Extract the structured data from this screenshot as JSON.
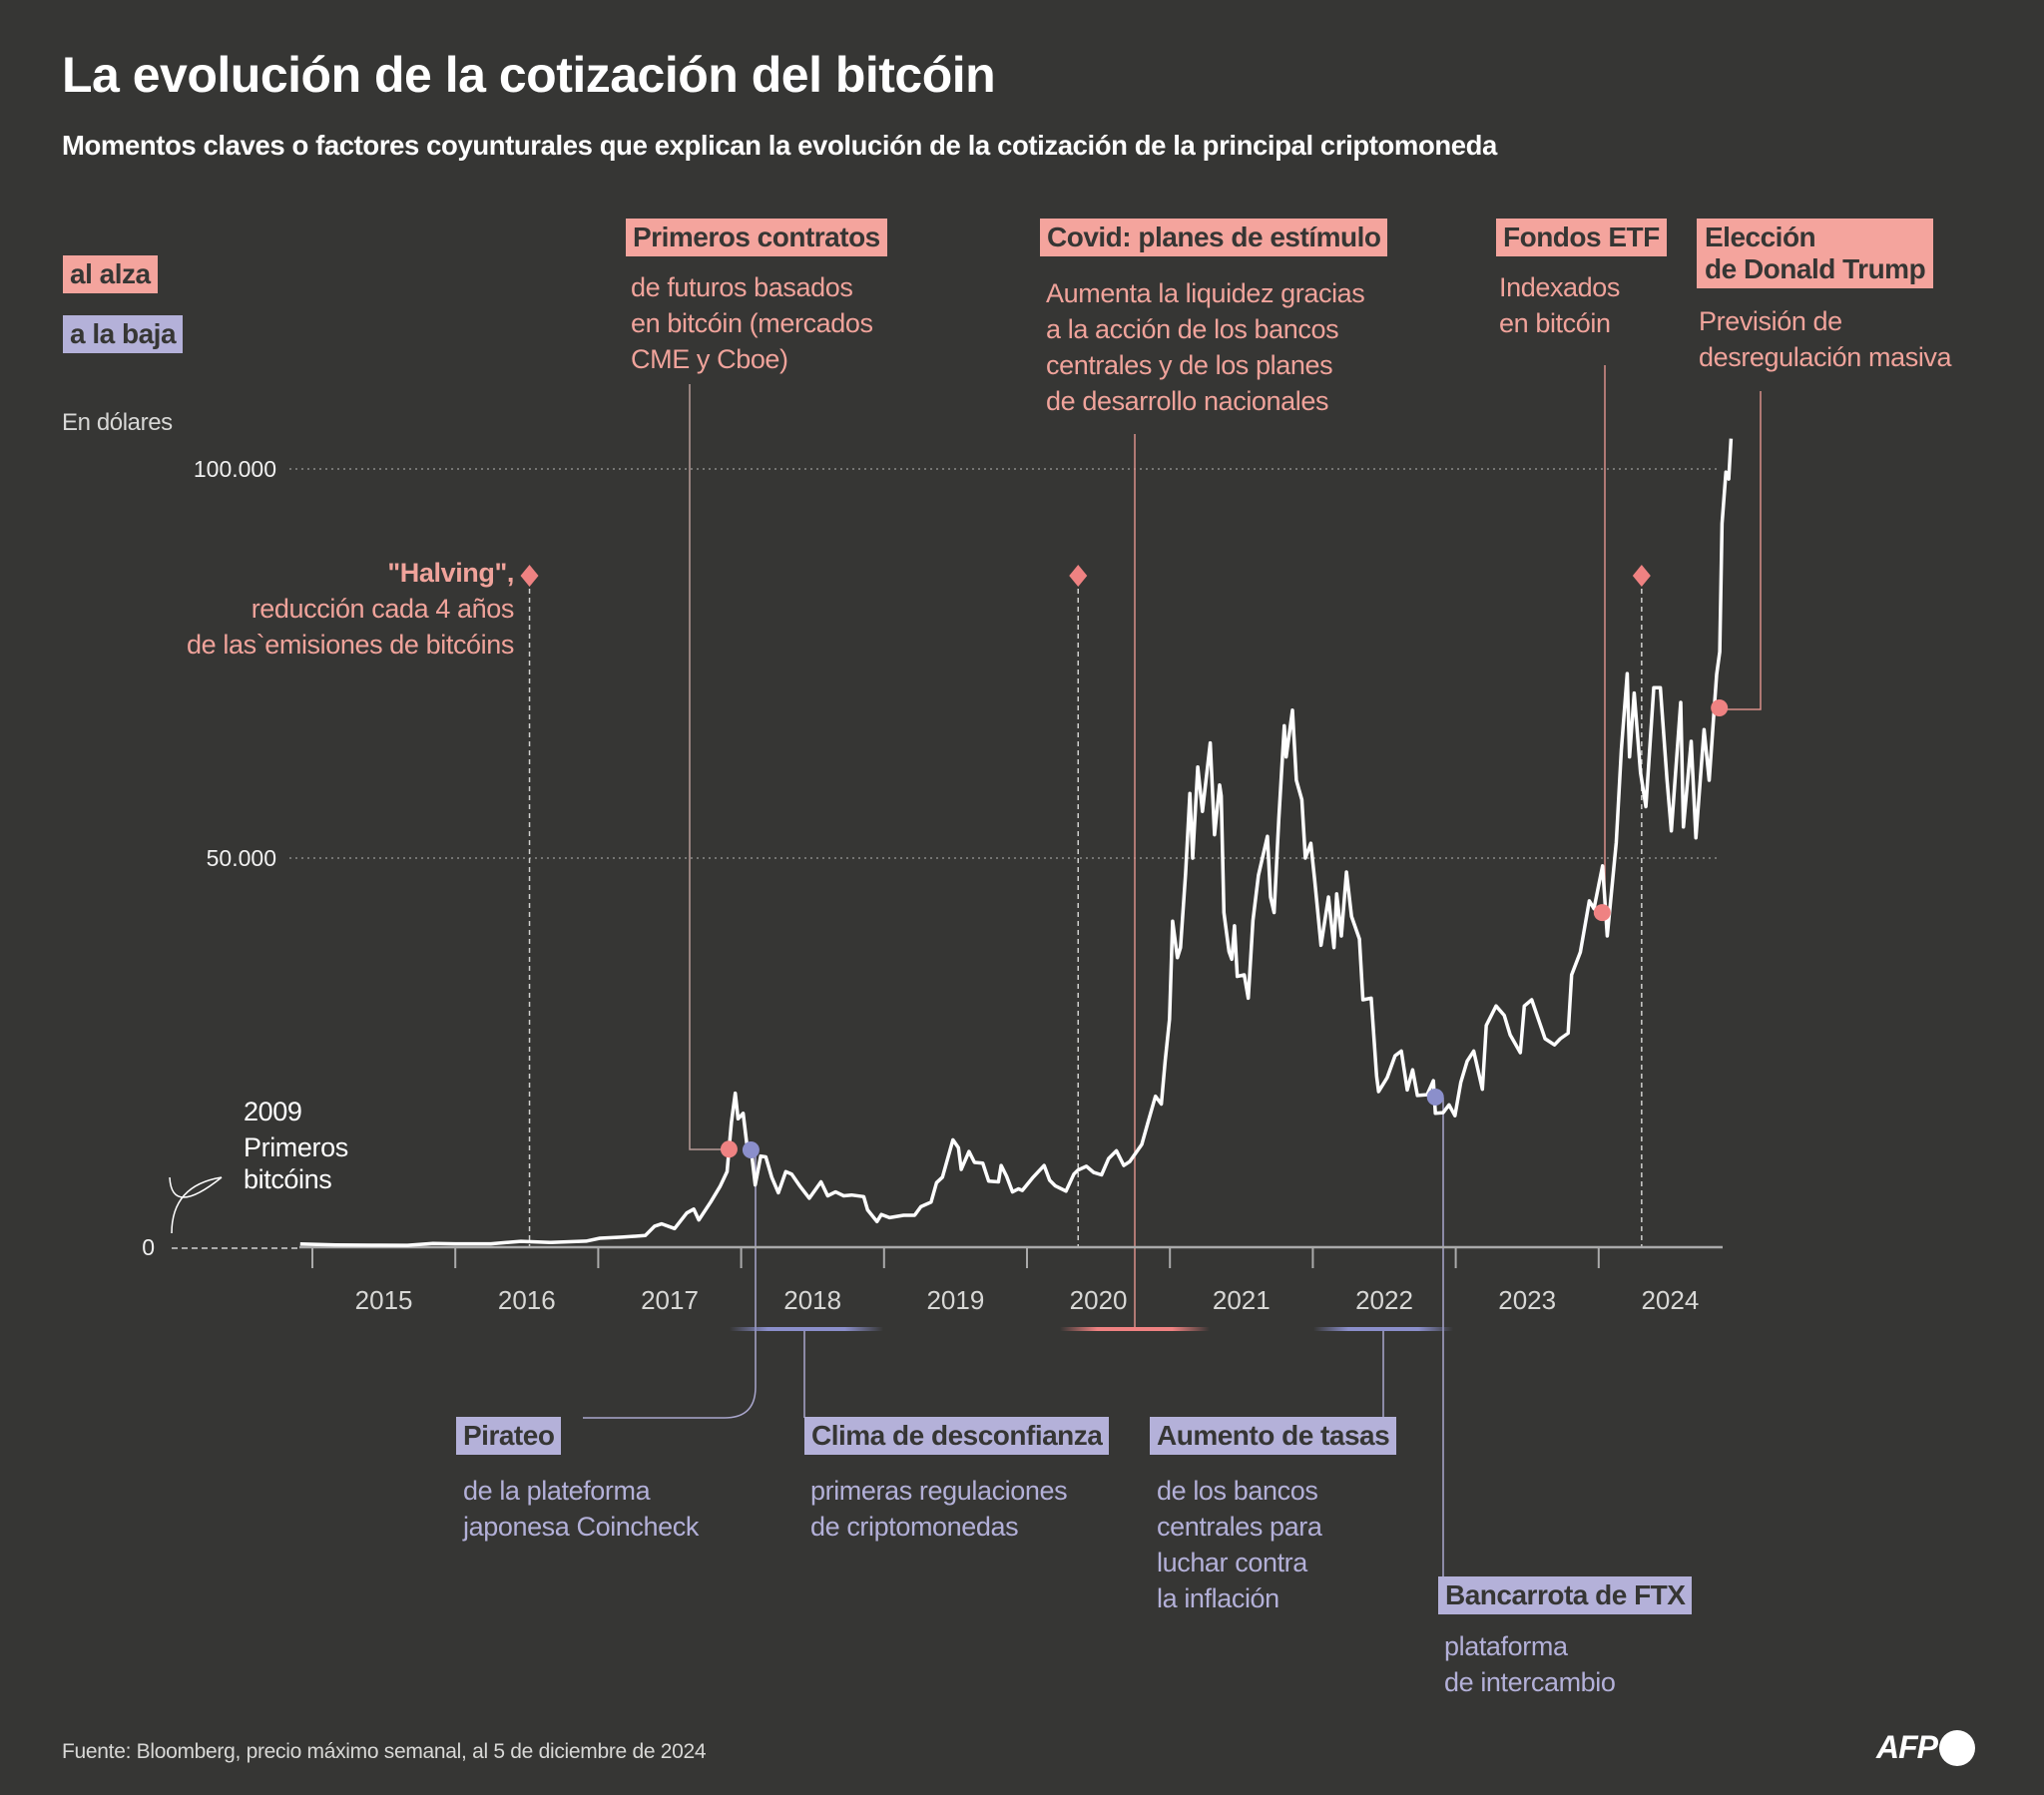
{
  "title": "La evolución de la cotización del bitcóin",
  "subtitle": "Momentos claves o factores coyunturales que explican la evolución de la cotización de la principal criptomoneda",
  "legend": {
    "up": "al alza",
    "down": "a la baja"
  },
  "colors": {
    "background": "#363634",
    "up": "#f4a49d",
    "down": "#b4b1d9",
    "up_dot": "#ef8282",
    "down_dot": "#8b8fcb",
    "line": "#ffffff"
  },
  "unit_label": "En dólares",
  "origin_note": {
    "year": "2009",
    "lines": [
      "Primeros",
      "bitcóins"
    ]
  },
  "halving": {
    "title": "\"Halving\",",
    "lines": [
      "reducción cada 4 años",
      "de las`emisiones de bitcóins"
    ],
    "dates": [
      "2016-07-09",
      "2020-05-11",
      "2024-04-20"
    ]
  },
  "events": [
    {
      "type": "up",
      "title": "Primeros contratos",
      "lines": [
        "de futuros basados",
        "en bitcóin (mercados",
        "CME y Cboe)"
      ],
      "date": "2017-12-01",
      "value": 12600
    },
    {
      "type": "up",
      "title": "Covid: planes de estímulo",
      "lines": [
        "Aumenta la liquidez gracias",
        "a la acción de los bancos",
        "centrales y de los planes",
        "de desarrollo nacionales"
      ]
    },
    {
      "type": "up",
      "title": "Fondos ETF",
      "lines": [
        "Indexados",
        "en bitcóin"
      ],
      "date": "2024-01-10",
      "value": 43000
    },
    {
      "type": "up",
      "title": "Elección de Donald Trump",
      "title_lines": [
        "Elección",
        "de Donald Trump"
      ],
      "lines": [
        "Previsión de",
        "desregulación masiva"
      ],
      "date": "2024-11-05",
      "value": 69300
    },
    {
      "type": "down",
      "title": "Pirateo",
      "lines": [
        "de la plateforma",
        "japonesa Coincheck"
      ],
      "date": "2018-01-26",
      "value": 12500
    },
    {
      "type": "down",
      "title": "Clima de desconfianza",
      "lines": [
        "primeras regulaciones",
        "de criptomonedas"
      ]
    },
    {
      "type": "down",
      "title": "Aumento de tasas",
      "lines": [
        "de los bancos",
        "centrales para",
        "luchar contra",
        "la inflación"
      ]
    },
    {
      "type": "down",
      "title": "Bancarrota de FTX",
      "lines": [
        "plataforma",
        "de intercambio"
      ],
      "date": "2022-11-10",
      "value": 19300
    }
  ],
  "source": "Fuente: Bloomberg, precio máximo semanal, al 5 de diciembre de 2024",
  "logo": "AFP",
  "chart_data": {
    "type": "line",
    "title": "La evolución de la cotización del bitcóin",
    "ylabel": "En dólares",
    "ylim": [
      0,
      100000
    ],
    "yticks": [
      {
        "value": 0,
        "label": "0"
      },
      {
        "value": 50000,
        "label": "50.000"
      },
      {
        "value": 100000,
        "label": "100.000"
      }
    ],
    "xticks": [
      "2015",
      "2016",
      "2017",
      "2018",
      "2019",
      "2020",
      "2021",
      "2022",
      "2023",
      "2024"
    ],
    "grid": "horizontal dotted",
    "series": [
      {
        "points": [
          [
            "2014-12-01",
            420
          ],
          [
            "2015-03-01",
            300
          ],
          [
            "2015-06-01",
            250
          ],
          [
            "2015-09-01",
            240
          ],
          [
            "2015-11-05",
            480
          ],
          [
            "2016-01-01",
            430
          ],
          [
            "2016-04-01",
            430
          ],
          [
            "2016-06-17",
            760
          ],
          [
            "2016-09-01",
            620
          ],
          [
            "2016-12-01",
            780
          ],
          [
            "2017-01-05",
            1150
          ],
          [
            "2017-03-03",
            1300
          ],
          [
            "2017-05-01",
            1500
          ],
          [
            "2017-05-25",
            2700
          ],
          [
            "2017-06-12",
            3000
          ],
          [
            "2017-07-15",
            2400
          ],
          [
            "2017-08-15",
            4400
          ],
          [
            "2017-09-02",
            4900
          ],
          [
            "2017-09-15",
            3500
          ],
          [
            "2017-10-15",
            5800
          ],
          [
            "2017-11-08",
            7800
          ],
          [
            "2017-11-26",
            9700
          ],
          [
            "2017-12-07",
            16000
          ],
          [
            "2017-12-17",
            19800
          ],
          [
            "2017-12-24",
            16500
          ],
          [
            "2018-01-06",
            17200
          ],
          [
            "2018-01-16",
            13000
          ],
          [
            "2018-01-28",
            11900
          ],
          [
            "2018-02-06",
            8000
          ],
          [
            "2018-02-20",
            11700
          ],
          [
            "2018-03-05",
            11600
          ],
          [
            "2018-03-20",
            9000
          ],
          [
            "2018-04-06",
            7000
          ],
          [
            "2018-04-25",
            9700
          ],
          [
            "2018-05-10",
            9400
          ],
          [
            "2018-06-01",
            7800
          ],
          [
            "2018-06-24",
            6300
          ],
          [
            "2018-07-24",
            8400
          ],
          [
            "2018-08-10",
            6600
          ],
          [
            "2018-08-30",
            7100
          ],
          [
            "2018-09-20",
            6600
          ],
          [
            "2018-10-10",
            6700
          ],
          [
            "2018-11-10",
            6500
          ],
          [
            "2018-11-20",
            4800
          ],
          [
            "2018-12-14",
            3300
          ],
          [
            "2018-12-25",
            4200
          ],
          [
            "2019-01-15",
            3800
          ],
          [
            "2019-02-20",
            4100
          ],
          [
            "2019-03-20",
            4100
          ],
          [
            "2019-04-05",
            5200
          ],
          [
            "2019-05-01",
            5800
          ],
          [
            "2019-05-15",
            8300
          ],
          [
            "2019-05-30",
            9000
          ],
          [
            "2019-06-26",
            13800
          ],
          [
            "2019-07-10",
            12800
          ],
          [
            "2019-07-17",
            10000
          ],
          [
            "2019-08-06",
            12300
          ],
          [
            "2019-08-20",
            10900
          ],
          [
            "2019-09-10",
            10800
          ],
          [
            "2019-09-25",
            8500
          ],
          [
            "2019-10-20",
            8400
          ],
          [
            "2019-10-27",
            10500
          ],
          [
            "2019-11-10",
            9100
          ],
          [
            "2019-11-25",
            7100
          ],
          [
            "2019-12-10",
            7500
          ],
          [
            "2019-12-20",
            7300
          ],
          [
            "2020-01-15",
            8900
          ],
          [
            "2020-02-14",
            10500
          ],
          [
            "2020-02-28",
            8600
          ],
          [
            "2020-03-13",
            7900
          ],
          [
            "2020-04-10",
            7200
          ],
          [
            "2020-04-30",
            9400
          ],
          [
            "2020-05-10",
            9900
          ],
          [
            "2020-06-01",
            10400
          ],
          [
            "2020-06-20",
            9600
          ],
          [
            "2020-07-10",
            9300
          ],
          [
            "2020-07-28",
            11400
          ],
          [
            "2020-08-17",
            12400
          ],
          [
            "2020-09-05",
            10500
          ],
          [
            "2020-09-20",
            11000
          ],
          [
            "2020-10-21",
            13200
          ],
          [
            "2020-11-05",
            15900
          ],
          [
            "2020-11-25",
            19400
          ],
          [
            "2020-12-10",
            18400
          ],
          [
            "2020-12-20",
            24000
          ],
          [
            "2020-12-31",
            29300
          ],
          [
            "2021-01-08",
            41900
          ],
          [
            "2021-01-20",
            37200
          ],
          [
            "2021-01-28",
            38500
          ],
          [
            "2021-02-10",
            48000
          ],
          [
            "2021-02-21",
            58300
          ],
          [
            "2021-02-28",
            50000
          ],
          [
            "2021-03-13",
            61700
          ],
          [
            "2021-03-25",
            56000
          ],
          [
            "2021-04-14",
            64800
          ],
          [
            "2021-04-25",
            53000
          ],
          [
            "2021-05-08",
            59400
          ],
          [
            "2021-05-12",
            58000
          ],
          [
            "2021-05-19",
            43000
          ],
          [
            "2021-06-01",
            38000
          ],
          [
            "2021-06-08",
            37000
          ],
          [
            "2021-06-15",
            41300
          ],
          [
            "2021-06-22",
            34800
          ],
          [
            "2021-07-10",
            35000
          ],
          [
            "2021-07-20",
            32000
          ],
          [
            "2021-08-01",
            42000
          ],
          [
            "2021-08-15",
            47800
          ],
          [
            "2021-09-07",
            52800
          ],
          [
            "2021-09-15",
            45000
          ],
          [
            "2021-09-24",
            43000
          ],
          [
            "2021-10-06",
            55000
          ],
          [
            "2021-10-20",
            67000
          ],
          [
            "2021-10-25",
            63000
          ],
          [
            "2021-11-10",
            69000
          ],
          [
            "2021-11-20",
            60000
          ],
          [
            "2021-12-04",
            57500
          ],
          [
            "2021-12-13",
            50000
          ],
          [
            "2021-12-27",
            51900
          ],
          [
            "2022-01-06",
            47000
          ],
          [
            "2022-01-22",
            38800
          ],
          [
            "2022-02-10",
            45000
          ],
          [
            "2022-02-24",
            38500
          ],
          [
            "2022-03-03",
            45400
          ],
          [
            "2022-03-15",
            40000
          ],
          [
            "2022-03-28",
            48200
          ],
          [
            "2022-04-10",
            42500
          ],
          [
            "2022-04-30",
            39600
          ],
          [
            "2022-05-09",
            31800
          ],
          [
            "2022-05-30",
            32000
          ],
          [
            "2022-06-13",
            22000
          ],
          [
            "2022-06-18",
            20000
          ],
          [
            "2022-07-10",
            21800
          ],
          [
            "2022-07-30",
            24600
          ],
          [
            "2022-08-15",
            25200
          ],
          [
            "2022-08-30",
            20200
          ],
          [
            "2022-09-13",
            22800
          ],
          [
            "2022-09-25",
            19500
          ],
          [
            "2022-10-20",
            19600
          ],
          [
            "2022-11-05",
            21400
          ],
          [
            "2022-11-10",
            17200
          ],
          [
            "2022-11-30",
            17300
          ],
          [
            "2022-12-15",
            18300
          ],
          [
            "2022-12-30",
            16900
          ],
          [
            "2023-01-14",
            21200
          ],
          [
            "2023-01-30",
            23900
          ],
          [
            "2023-02-16",
            25200
          ],
          [
            "2023-03-10",
            20300
          ],
          [
            "2023-03-20",
            28500
          ],
          [
            "2023-04-14",
            31000
          ],
          [
            "2023-05-05",
            29800
          ],
          [
            "2023-05-20",
            27300
          ],
          [
            "2023-06-15",
            25000
          ],
          [
            "2023-06-25",
            31000
          ],
          [
            "2023-07-14",
            31800
          ],
          [
            "2023-08-17",
            26800
          ],
          [
            "2023-09-10",
            26000
          ],
          [
            "2023-09-25",
            26800
          ],
          [
            "2023-10-15",
            27500
          ],
          [
            "2023-10-24",
            35000
          ],
          [
            "2023-11-15",
            37900
          ],
          [
            "2023-12-08",
            44500
          ],
          [
            "2023-12-20",
            43500
          ],
          [
            "2024-01-11",
            49000
          ],
          [
            "2024-01-23",
            40000
          ],
          [
            "2024-02-15",
            52000
          ],
          [
            "2024-02-28",
            63900
          ],
          [
            "2024-03-14",
            73700
          ],
          [
            "2024-03-20",
            63000
          ],
          [
            "2024-04-01",
            71200
          ],
          [
            "2024-04-17",
            61000
          ],
          [
            "2024-05-01",
            56600
          ],
          [
            "2024-05-21",
            71900
          ],
          [
            "2024-06-07",
            71900
          ],
          [
            "2024-06-24",
            60000
          ],
          [
            "2024-07-05",
            53500
          ],
          [
            "2024-07-29",
            70000
          ],
          [
            "2024-08-05",
            54000
          ],
          [
            "2024-08-25",
            65000
          ],
          [
            "2024-09-06",
            52600
          ],
          [
            "2024-09-27",
            66500
          ],
          [
            "2024-10-10",
            60000
          ],
          [
            "2024-10-29",
            73600
          ],
          [
            "2024-11-06",
            76500
          ],
          [
            "2024-11-12",
            93000
          ],
          [
            "2024-11-22",
            99600
          ],
          [
            "2024-11-29",
            98700
          ],
          [
            "2024-12-05",
            103900
          ]
        ]
      }
    ]
  }
}
